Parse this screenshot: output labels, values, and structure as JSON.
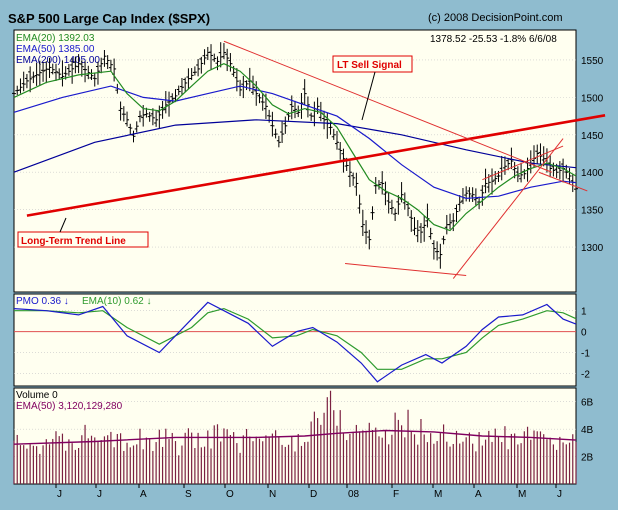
{
  "header": {
    "title": "S&P 500 Large Cap Index ($SPX)",
    "copyright": "(c) 2008 DecisionPoint.com"
  },
  "colors": {
    "frame": "#8fbccf",
    "panel_bg": "#fffff0",
    "price_bar": "#000000",
    "ema20": "#228b22",
    "ema50": "#1a1acc",
    "ema200": "#000099",
    "trendline": "#e00000",
    "thin_red": "#e03030",
    "pmo": "#1a1acc",
    "pmo_signal": "#2e9b2e",
    "volume_bar": "#7a2040",
    "volume_ema": "#800060"
  },
  "chart_data": [
    {
      "type": "ohlc",
      "panel": "price",
      "legend": [
        {
          "label": "EMA(20) 1392.03",
          "color": "#228b22"
        },
        {
          "label": "EMA(50) 1385.00",
          "color": "#1a1acc"
        },
        {
          "label": "EMA(200) 1405.00",
          "color": "#000099"
        }
      ],
      "readout": {
        "close": "1378.52",
        "change": "-25.53",
        "pct": "-1.8%",
        "date": "6/6/08"
      },
      "ylim": [
        1240,
        1590
      ],
      "y_ticks": [
        1300,
        1350,
        1400,
        1450,
        1500,
        1550
      ],
      "x_labels": [
        "J",
        "J",
        "A",
        "S",
        "O",
        "N",
        "D",
        "08",
        "F",
        "M",
        "A",
        "M",
        "J"
      ],
      "close_path": [
        [
          0,
          1505
        ],
        [
          8,
          1522
        ],
        [
          16,
          1533
        ],
        [
          22,
          1540
        ],
        [
          30,
          1528
        ],
        [
          40,
          1545
        ],
        [
          50,
          1525
        ],
        [
          56,
          1555
        ],
        [
          62,
          1538
        ],
        [
          66,
          1485
        ],
        [
          70,
          1470
        ],
        [
          74,
          1448
        ],
        [
          78,
          1475
        ],
        [
          82,
          1478
        ],
        [
          88,
          1470
        ],
        [
          94,
          1490
        ],
        [
          100,
          1502
        ],
        [
          108,
          1525
        ],
        [
          114,
          1538
        ],
        [
          120,
          1560
        ],
        [
          126,
          1548
        ],
        [
          130,
          1560
        ],
        [
          134,
          1545
        ],
        [
          140,
          1510
        ],
        [
          146,
          1522
        ],
        [
          150,
          1505
        ],
        [
          156,
          1488
        ],
        [
          160,
          1462
        ],
        [
          164,
          1440
        ],
        [
          168,
          1462
        ],
        [
          172,
          1488
        ],
        [
          176,
          1480
        ],
        [
          180,
          1505
        ],
        [
          184,
          1475
        ],
        [
          188,
          1488
        ],
        [
          192,
          1470
        ],
        [
          196,
          1460
        ],
        [
          200,
          1440
        ],
        [
          204,
          1418
        ],
        [
          208,
          1400
        ],
        [
          212,
          1385
        ],
        [
          216,
          1330
        ],
        [
          220,
          1310
        ],
        [
          224,
          1382
        ],
        [
          228,
          1385
        ],
        [
          232,
          1360
        ],
        [
          236,
          1345
        ],
        [
          240,
          1370
        ],
        [
          244,
          1352
        ],
        [
          248,
          1325
        ],
        [
          252,
          1320
        ],
        [
          256,
          1338
        ],
        [
          260,
          1298
        ],
        [
          264,
          1290
        ],
        [
          268,
          1330
        ],
        [
          272,
          1335
        ],
        [
          276,
          1360
        ],
        [
          280,
          1372
        ],
        [
          284,
          1370
        ],
        [
          288,
          1360
        ],
        [
          292,
          1385
        ],
        [
          296,
          1388
        ],
        [
          300,
          1395
        ],
        [
          304,
          1408
        ],
        [
          308,
          1415
        ],
        [
          312,
          1395
        ],
        [
          316,
          1398
        ],
        [
          320,
          1412
        ],
        [
          324,
          1425
        ],
        [
          328,
          1418
        ],
        [
          332,
          1405
        ],
        [
          336,
          1400
        ],
        [
          340,
          1405
        ],
        [
          344,
          1395
        ],
        [
          348,
          1378
        ]
      ],
      "ema20_path": [
        [
          0,
          1500
        ],
        [
          20,
          1520
        ],
        [
          40,
          1530
        ],
        [
          60,
          1535
        ],
        [
          70,
          1505
        ],
        [
          80,
          1485
        ],
        [
          90,
          1482
        ],
        [
          100,
          1495
        ],
        [
          110,
          1515
        ],
        [
          120,
          1535
        ],
        [
          130,
          1545
        ],
        [
          140,
          1535
        ],
        [
          150,
          1515
        ],
        [
          160,
          1490
        ],
        [
          170,
          1478
        ],
        [
          180,
          1485
        ],
        [
          190,
          1480
        ],
        [
          200,
          1460
        ],
        [
          210,
          1425
        ],
        [
          220,
          1390
        ],
        [
          230,
          1375
        ],
        [
          240,
          1365
        ],
        [
          250,
          1350
        ],
        [
          260,
          1330
        ],
        [
          270,
          1322
        ],
        [
          280,
          1345
        ],
        [
          290,
          1362
        ],
        [
          300,
          1380
        ],
        [
          310,
          1395
        ],
        [
          320,
          1405
        ],
        [
          330,
          1412
        ],
        [
          340,
          1405
        ],
        [
          348,
          1395
        ]
      ],
      "ema50_path": [
        [
          0,
          1480
        ],
        [
          30,
          1500
        ],
        [
          60,
          1515
        ],
        [
          80,
          1500
        ],
        [
          100,
          1495
        ],
        [
          120,
          1505
        ],
        [
          140,
          1515
        ],
        [
          160,
          1505
        ],
        [
          180,
          1490
        ],
        [
          200,
          1475
        ],
        [
          220,
          1445
        ],
        [
          240,
          1410
        ],
        [
          260,
          1380
        ],
        [
          280,
          1365
        ],
        [
          300,
          1368
        ],
        [
          320,
          1380
        ],
        [
          340,
          1388
        ],
        [
          348,
          1386
        ]
      ],
      "ema200_path": [
        [
          0,
          1400
        ],
        [
          50,
          1440
        ],
        [
          100,
          1463
        ],
        [
          150,
          1470
        ],
        [
          200,
          1465
        ],
        [
          240,
          1450
        ],
        [
          280,
          1430
        ],
        [
          320,
          1412
        ],
        [
          348,
          1406
        ]
      ],
      "annotations": [
        {
          "text": "LT Sell Signal",
          "color": "#e00000"
        },
        {
          "text": "Long-Term Trend Line",
          "color": "#e00000"
        }
      ]
    },
    {
      "type": "line",
      "panel": "pmo",
      "legend": [
        {
          "label": "PMO",
          "value": "0.36",
          "arrow": "↓",
          "color": "#1a1acc"
        },
        {
          "label": "EMA(10)",
          "value": "0.62",
          "arrow": "↓",
          "color": "#2e9b2e"
        }
      ],
      "ylim": [
        -2.6,
        1.8
      ],
      "y_ticks": [
        1,
        0,
        -1,
        -2
      ],
      "series": [
        {
          "name": "PMO",
          "points": [
            [
              0,
              1.1
            ],
            [
              20,
              1.0
            ],
            [
              40,
              0.8
            ],
            [
              55,
              1.2
            ],
            [
              70,
              -0.2
            ],
            [
              90,
              -1.0
            ],
            [
              110,
              0.6
            ],
            [
              120,
              1.4
            ],
            [
              130,
              1.0
            ],
            [
              145,
              0.4
            ],
            [
              160,
              -0.7
            ],
            [
              175,
              0.0
            ],
            [
              185,
              0.2
            ],
            [
              200,
              -0.5
            ],
            [
              215,
              -1.5
            ],
            [
              225,
              -2.4
            ],
            [
              240,
              -1.6
            ],
            [
              255,
              -1.1
            ],
            [
              265,
              -1.5
            ],
            [
              280,
              -0.7
            ],
            [
              290,
              0.1
            ],
            [
              300,
              0.7
            ],
            [
              315,
              0.8
            ],
            [
              330,
              1.3
            ],
            [
              340,
              0.6
            ],
            [
              348,
              0.36
            ]
          ]
        },
        {
          "name": "EMA(10)",
          "points": [
            [
              0,
              1.0
            ],
            [
              20,
              1.0
            ],
            [
              40,
              0.9
            ],
            [
              55,
              1.0
            ],
            [
              70,
              0.2
            ],
            [
              90,
              -0.6
            ],
            [
              110,
              0.2
            ],
            [
              120,
              0.9
            ],
            [
              130,
              1.1
            ],
            [
              145,
              0.6
            ],
            [
              160,
              -0.3
            ],
            [
              175,
              -0.2
            ],
            [
              185,
              0.1
            ],
            [
              200,
              -0.2
            ],
            [
              215,
              -1.0
            ],
            [
              225,
              -1.8
            ],
            [
              240,
              -1.8
            ],
            [
              255,
              -1.3
            ],
            [
              265,
              -1.3
            ],
            [
              280,
              -1.0
            ],
            [
              290,
              -0.3
            ],
            [
              300,
              0.3
            ],
            [
              315,
              0.6
            ],
            [
              330,
              1.0
            ],
            [
              340,
              0.9
            ],
            [
              348,
              0.62
            ]
          ]
        }
      ]
    },
    {
      "type": "bar",
      "panel": "volume",
      "legend": [
        {
          "label": "Volume",
          "value": "0",
          "color": "#000000"
        },
        {
          "label": "EMA(50)",
          "value": "3,120,129,280",
          "color": "#800060"
        }
      ],
      "ylim": [
        0,
        7
      ],
      "y_ticks": [
        "6B",
        "4B",
        "2B"
      ],
      "volume_levels": [
        2.7,
        3.0,
        2.8,
        3.1,
        2.9,
        3.2,
        3.0,
        2.8,
        3.3,
        3.6,
        4.5,
        4.2,
        3.9,
        3.5,
        3.2,
        3.0,
        3.3,
        2.9,
        3.1,
        3.4,
        3.0,
        2.8,
        3.2,
        3.4,
        3.1,
        3.6,
        3.8,
        3.3,
        3.0,
        3.2,
        3.5,
        3.3,
        3.1,
        3.4,
        3.0,
        2.9,
        3.3,
        3.9,
        4.6,
        5.5,
        6.2,
        4.8,
        4.1,
        3.8,
        3.9,
        4.4,
        3.7,
        3.5,
        4.1,
        4.8,
        4.2,
        3.9,
        3.6,
        3.4,
        3.8,
        3.5,
        3.2,
        3.4,
        3.3,
        3.1,
        3.5,
        3.2,
        3.4,
        2.9,
        3.3,
        3.6,
        3.1,
        3.0,
        2.8,
        3.2,
        3.1,
        3.3
      ],
      "ema_path": [
        [
          0,
          2.9
        ],
        [
          50,
          3.1
        ],
        [
          100,
          3.4
        ],
        [
          150,
          3.4
        ],
        [
          180,
          3.5
        ],
        [
          200,
          3.7
        ],
        [
          230,
          3.9
        ],
        [
          260,
          3.8
        ],
        [
          290,
          3.5
        ],
        [
          320,
          3.4
        ],
        [
          348,
          3.2
        ]
      ]
    }
  ]
}
